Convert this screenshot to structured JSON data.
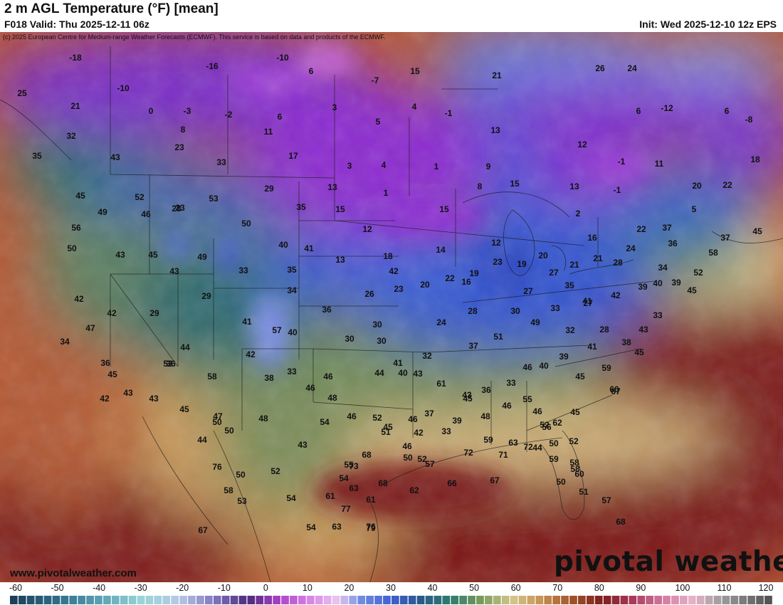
{
  "header": {
    "title": "2 m AGL Temperature (°F) [mean]",
    "valid": "F018 Valid: Thu 2025-12-11 06z",
    "init": "Init: Wed 2025-12-10 12z EPS",
    "copyright": "(c) 2025 European Centre for Medium-range Weather Forecasts (ECMWF). This service is based on data and products of the ECMWF."
  },
  "footer": {
    "site": "www.pivotalweather.com",
    "brand": "pivotal weather"
  },
  "colorbar": {
    "ticks": [
      "-60",
      "-50",
      "-40",
      "-30",
      "-20",
      "-10",
      "0",
      "10",
      "20",
      "30",
      "40",
      "50",
      "60",
      "70",
      "80",
      "90",
      "100",
      "110",
      "120"
    ],
    "units": "°F"
  },
  "colors": {
    "arctic_purple": "#8a2bd0",
    "cold_blue": "#3b57d6",
    "cool_teal": "#2e6f6a",
    "mild_green": "#8f9a55",
    "warm_tan": "#d9b77a",
    "hot_red": "#8f1e1e"
  },
  "temperature_labels": [
    "-18",
    "-16",
    "-10",
    "6",
    "15",
    "21",
    "26",
    "24",
    "25",
    "-10",
    "0",
    "-3",
    "-2",
    "-7",
    "4",
    "-1",
    "6",
    "-12",
    "6",
    "21",
    "8",
    "11",
    "6",
    "3",
    "5",
    "13",
    "-8",
    "12",
    "32",
    "23",
    "17",
    "3",
    "4",
    "1",
    "-1",
    "11",
    "18",
    "35",
    "33",
    "9",
    "20",
    "22",
    "45",
    "43",
    "52",
    "53",
    "29",
    "13",
    "1",
    "8",
    "15",
    "13",
    "-1",
    "5",
    "28",
    "23",
    "49",
    "46",
    "50",
    "35",
    "15",
    "12",
    "15",
    "2",
    "22",
    "37",
    "37",
    "45",
    "56",
    "43",
    "45",
    "41",
    "14",
    "12",
    "16",
    "24",
    "36",
    "58",
    "50",
    "43",
    "49",
    "33",
    "40",
    "35",
    "13",
    "18",
    "23",
    "19",
    "20",
    "42",
    "20",
    "22",
    "19",
    "21",
    "21",
    "28",
    "34",
    "39",
    "52",
    "42",
    "47",
    "34",
    "26",
    "23",
    "16",
    "27",
    "27",
    "30",
    "35",
    "39",
    "40",
    "33",
    "45",
    "42",
    "29",
    "29",
    "24",
    "28",
    "27",
    "33",
    "41",
    "42",
    "43",
    "41",
    "36",
    "30",
    "30",
    "30",
    "32",
    "37",
    "51",
    "49",
    "32",
    "28",
    "38",
    "34",
    "44",
    "42",
    "57",
    "40",
    "38",
    "36",
    "33",
    "41",
    "43",
    "61",
    "39",
    "41",
    "45",
    "36",
    "45",
    "53",
    "58",
    "46",
    "46",
    "44",
    "40",
    "36",
    "33",
    "46",
    "40",
    "45",
    "59",
    "67",
    "44",
    "43",
    "43",
    "48",
    "46",
    "56",
    "60",
    "45",
    "42",
    "43",
    "45",
    "47",
    "50",
    "54",
    "48",
    "46",
    "52",
    "45",
    "46",
    "37",
    "39",
    "45",
    "46",
    "55",
    "52",
    "62",
    "50",
    "50",
    "48",
    "43",
    "55",
    "51",
    "46",
    "42",
    "33",
    "59",
    "63",
    "44",
    "52",
    "58",
    "50",
    "52",
    "54",
    "54",
    "63",
    "68",
    "50",
    "52",
    "57",
    "72",
    "71",
    "72",
    "59",
    "58",
    "60",
    "58",
    "61",
    "63",
    "61",
    "68",
    "62",
    "66",
    "67",
    "50",
    "51",
    "67",
    "76",
    "53",
    "77",
    "54",
    "73",
    "79",
    "76",
    "57",
    "68"
  ]
}
